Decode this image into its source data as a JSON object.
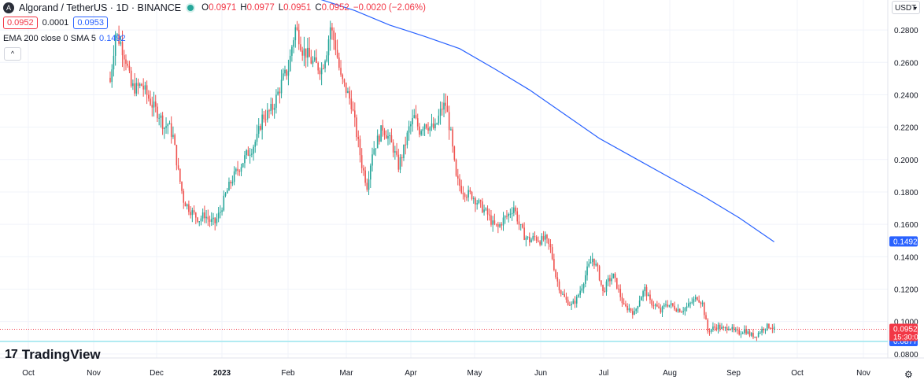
{
  "header": {
    "symbol": "Algorand / TetherUS · 1D · BINANCE",
    "logo_icon": "algorand-logo-icon",
    "open_label": "O",
    "open": "0.0971",
    "high_label": "H",
    "high": "0.0977",
    "low_label": "L",
    "low": "0.0951",
    "close_label": "C",
    "close": "0.0952",
    "change": "−0.0020 (−2.06%)"
  },
  "trade": {
    "sell": "0.0952",
    "spread": "0.0001",
    "buy": "0.0953"
  },
  "indicator": {
    "label": "EMA 200 close 0 SMA 5",
    "value": "0.1492"
  },
  "currency": "USDT",
  "brand": "TradingView",
  "colors": {
    "up": "#26a69a",
    "down": "#ef5350",
    "ema": "#2962ff",
    "last": "#f23645",
    "grid": "#f0f3fa"
  },
  "chart_data": {
    "type": "candlestick",
    "y_ticks": [
      "0.2800",
      "0.2600",
      "0.2400",
      "0.2200",
      "0.2000",
      "0.1800",
      "0.1600",
      "0.1400",
      "0.1200",
      "0.1000",
      "0.0800"
    ],
    "x_ticks": [
      "Oct",
      "Nov",
      "Dec",
      "2023",
      "Feb",
      "Mar",
      "Apr",
      "May",
      "Jun",
      "Jul",
      "Aug",
      "Sep",
      "Oct",
      "Nov"
    ],
    "x_tick_labels_bold": [
      "2023"
    ],
    "ylim": [
      0.0775,
      0.2985
    ],
    "grid": true,
    "last_price": {
      "value": 0.0952,
      "label": "0.0952",
      "countdown": "15:30:09"
    },
    "ema_label": {
      "value": 0.1492,
      "label": "0.1492"
    },
    "support_line": {
      "value": 0.0877,
      "label": "0.0877"
    },
    "close_path": [
      [
        0,
        0.248
      ],
      [
        3,
        0.278
      ],
      [
        6,
        0.272
      ],
      [
        9,
        0.262
      ],
      [
        12,
        0.245
      ],
      [
        15,
        0.244
      ],
      [
        18,
        0.246
      ],
      [
        21,
        0.24
      ],
      [
        25,
        0.232
      ],
      [
        28,
        0.228
      ],
      [
        31,
        0.22
      ],
      [
        33,
        0.222
      ],
      [
        36,
        0.214
      ],
      [
        39,
        0.192
      ],
      [
        42,
        0.175
      ],
      [
        45,
        0.17
      ],
      [
        48,
        0.166
      ],
      [
        51,
        0.163
      ],
      [
        54,
        0.166
      ],
      [
        57,
        0.162
      ],
      [
        60,
        0.161
      ],
      [
        63,
        0.168
      ],
      [
        66,
        0.178
      ],
      [
        69,
        0.186
      ],
      [
        72,
        0.192
      ],
      [
        75,
        0.197
      ],
      [
        78,
        0.203
      ],
      [
        81,
        0.207
      ],
      [
        84,
        0.213
      ],
      [
        87,
        0.226
      ],
      [
        90,
        0.228
      ],
      [
        93,
        0.232
      ],
      [
        96,
        0.241
      ],
      [
        99,
        0.25
      ],
      [
        102,
        0.256
      ],
      [
        104,
        0.27
      ],
      [
        106,
        0.281
      ],
      [
        108,
        0.276
      ],
      [
        110,
        0.268
      ],
      [
        112,
        0.266
      ],
      [
        115,
        0.261
      ],
      [
        118,
        0.258
      ],
      [
        121,
        0.256
      ],
      [
        124,
        0.268
      ],
      [
        126,
        0.282
      ],
      [
        129,
        0.27
      ],
      [
        132,
        0.25
      ],
      [
        135,
        0.243
      ],
      [
        138,
        0.235
      ],
      [
        141,
        0.216
      ],
      [
        144,
        0.197
      ],
      [
        147,
        0.184
      ],
      [
        150,
        0.205
      ],
      [
        153,
        0.212
      ],
      [
        156,
        0.22
      ],
      [
        159,
        0.214
      ],
      [
        162,
        0.207
      ],
      [
        165,
        0.196
      ],
      [
        168,
        0.206
      ],
      [
        171,
        0.219
      ],
      [
        174,
        0.226
      ],
      [
        177,
        0.218
      ],
      [
        180,
        0.223
      ],
      [
        183,
        0.22
      ],
      [
        186,
        0.219
      ],
      [
        188,
        0.226
      ],
      [
        190,
        0.232
      ],
      [
        192,
        0.234
      ],
      [
        195,
        0.215
      ],
      [
        198,
        0.188
      ],
      [
        201,
        0.182
      ],
      [
        204,
        0.179
      ],
      [
        207,
        0.178
      ],
      [
        210,
        0.174
      ],
      [
        213,
        0.17
      ],
      [
        216,
        0.166
      ],
      [
        219,
        0.16
      ],
      [
        222,
        0.158
      ],
      [
        225,
        0.163
      ],
      [
        228,
        0.166
      ],
      [
        231,
        0.171
      ],
      [
        234,
        0.16
      ],
      [
        237,
        0.153
      ],
      [
        240,
        0.15
      ],
      [
        243,
        0.152
      ],
      [
        246,
        0.15
      ],
      [
        249,
        0.151
      ],
      [
        252,
        0.145
      ],
      [
        255,
        0.128
      ],
      [
        258,
        0.118
      ],
      [
        261,
        0.113
      ],
      [
        264,
        0.11
      ],
      [
        267,
        0.114
      ],
      [
        270,
        0.122
      ],
      [
        273,
        0.132
      ],
      [
        276,
        0.139
      ],
      [
        279,
        0.132
      ],
      [
        282,
        0.118
      ],
      [
        285,
        0.125
      ],
      [
        288,
        0.128
      ],
      [
        291,
        0.119
      ],
      [
        294,
        0.109
      ],
      [
        297,
        0.108
      ],
      [
        300,
        0.105
      ],
      [
        303,
        0.114
      ],
      [
        306,
        0.12
      ],
      [
        309,
        0.112
      ],
      [
        312,
        0.11
      ],
      [
        315,
        0.106
      ],
      [
        318,
        0.111
      ],
      [
        321,
        0.11
      ],
      [
        324,
        0.108
      ],
      [
        327,
        0.107
      ],
      [
        330,
        0.109
      ],
      [
        333,
        0.112
      ],
      [
        336,
        0.115
      ],
      [
        339,
        0.111
      ],
      [
        342,
        0.094
      ],
      [
        345,
        0.096
      ],
      [
        348,
        0.097
      ],
      [
        351,
        0.095
      ],
      [
        354,
        0.097
      ],
      [
        357,
        0.094
      ],
      [
        360,
        0.093
      ],
      [
        363,
        0.095
      ],
      [
        366,
        0.092
      ],
      [
        369,
        0.091
      ],
      [
        372,
        0.094
      ],
      [
        375,
        0.097
      ],
      [
        378,
        0.0971
      ],
      [
        380,
        0.0952
      ]
    ],
    "ema_path": [
      [
        120,
        0.299
      ],
      [
        140,
        0.292
      ],
      [
        160,
        0.283
      ],
      [
        180,
        0.276
      ],
      [
        200,
        0.2685
      ],
      [
        220,
        0.256
      ],
      [
        240,
        0.243
      ],
      [
        260,
        0.228
      ],
      [
        280,
        0.213
      ],
      [
        300,
        0.201
      ],
      [
        320,
        0.189
      ],
      [
        340,
        0.177
      ],
      [
        360,
        0.164
      ],
      [
        380,
        0.1492
      ]
    ]
  }
}
